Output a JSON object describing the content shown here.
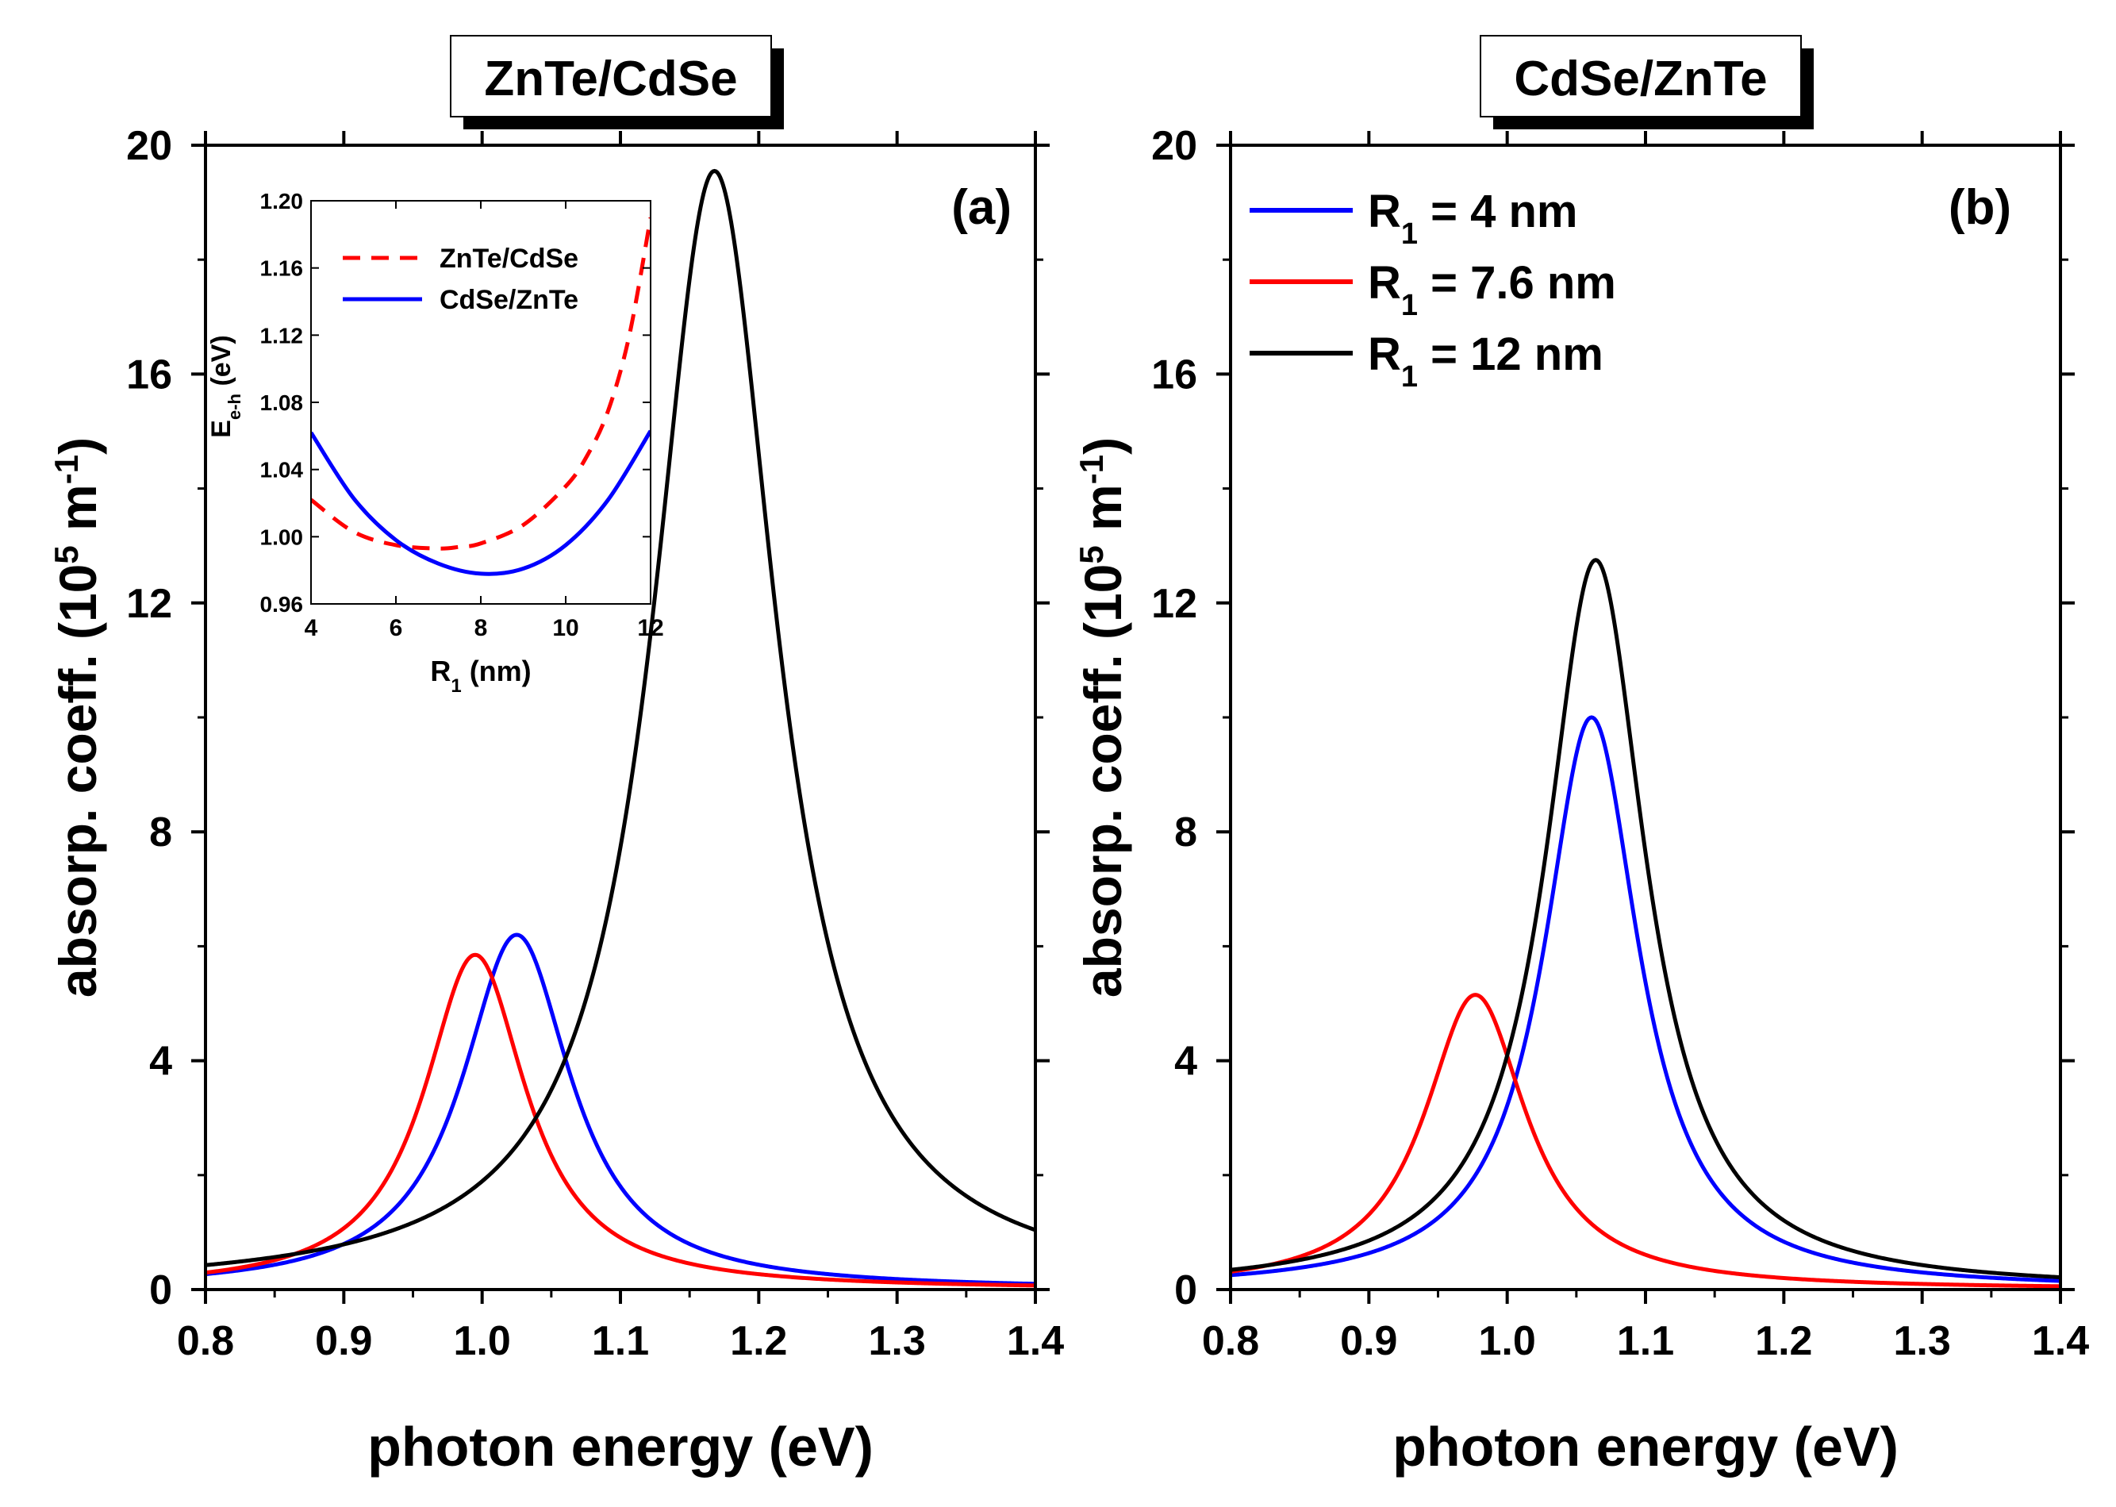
{
  "chart_data": [
    {
      "id": "a",
      "type": "line",
      "title": "ZnTe/CdSe",
      "panel_label": "(a)",
      "xlabel": "photon energy (eV)",
      "ylabel": "absorp. coeff. (10",
      "ylabel_sup": "5",
      "ylabel_unit": " m",
      "ylabel_unit_sup": "-1",
      "ylabel_close": ")",
      "xlim": [
        0.8,
        1.4
      ],
      "ylim": [
        0,
        20
      ],
      "xticks": [
        "0.8",
        "0.9",
        "1.0",
        "1.1",
        "1.2",
        "1.3",
        "1.4"
      ],
      "yticks": [
        "0",
        "4",
        "8",
        "12",
        "16",
        "20"
      ],
      "series": [
        {
          "name": "R1 = 4 nm",
          "color": "#0000ff",
          "peak_x": 1.025,
          "peak_y": 6.2,
          "width": 0.048
        },
        {
          "name": "R1 = 7.6 nm",
          "color": "#ff0000",
          "peak_x": 0.995,
          "peak_y": 5.85,
          "width": 0.045
        },
        {
          "name": "R1 = 12 nm",
          "color": "#000000",
          "peak_x": 1.168,
          "peak_y": 19.55,
          "width": 0.055
        }
      ],
      "inset": {
        "type": "line",
        "xlabel": "R",
        "xlabel_sub": "1",
        "xlabel_unit": " (nm)",
        "ylabel": "E",
        "ylabel_sub": "e-h",
        "ylabel_unit": " (eV)",
        "xlim": [
          4,
          12
        ],
        "ylim": [
          0.96,
          1.2
        ],
        "xticks": [
          "4",
          "6",
          "8",
          "10",
          "12"
        ],
        "yticks": [
          "0.96",
          "1.00",
          "1.04",
          "1.08",
          "1.12",
          "1.16",
          "1.20"
        ],
        "series": [
          {
            "name": "ZnTe/CdSe",
            "color": "#ff0000",
            "dash": true,
            "x": [
              4,
              5,
              6,
              7,
              7.5,
              8,
              9,
              10,
              10.5,
              11,
              11.5,
              12
            ],
            "y": [
              1.022,
              1.003,
              0.995,
              0.993,
              0.994,
              0.996,
              1.007,
              1.03,
              1.048,
              1.075,
              1.12,
              1.19
            ]
          },
          {
            "name": "CdSe/ZnTe",
            "color": "#0000ff",
            "dash": false,
            "x": [
              4,
              5,
              6,
              7,
              8,
              9,
              10,
              11,
              12
            ],
            "y": [
              1.062,
              1.023,
              0.998,
              0.984,
              0.978,
              0.981,
              0.995,
              1.022,
              1.063
            ]
          }
        ]
      }
    },
    {
      "id": "b",
      "type": "line",
      "title": "CdSe/ZnTe",
      "panel_label": "(b)",
      "xlabel": "photon energy (eV)",
      "ylabel": "absorp. coeff. (10",
      "ylabel_sup": "5",
      "ylabel_unit": " m",
      "ylabel_unit_sup": "-1",
      "ylabel_close": ")",
      "xlim": [
        0.8,
        1.4
      ],
      "ylim": [
        0,
        20
      ],
      "xticks": [
        "0.8",
        "0.9",
        "1.0",
        "1.1",
        "1.2",
        "1.3",
        "1.4"
      ],
      "yticks": [
        "0",
        "4",
        "8",
        "12",
        "16",
        "20"
      ],
      "legend_position": "top-left",
      "series": [
        {
          "name": "R",
          "sub": "1",
          "rest": " = 4 nm",
          "color": "#0000ff",
          "peak_x": 1.061,
          "peak_y": 10.0,
          "width": 0.042
        },
        {
          "name": "R",
          "sub": "1",
          "rest": " = 7.6 nm",
          "color": "#ff0000",
          "peak_x": 0.977,
          "peak_y": 5.15,
          "width": 0.045
        },
        {
          "name": "R",
          "sub": "1",
          "rest": " = 12 nm",
          "color": "#000000",
          "peak_x": 1.064,
          "peak_y": 12.75,
          "width": 0.044
        }
      ]
    }
  ]
}
